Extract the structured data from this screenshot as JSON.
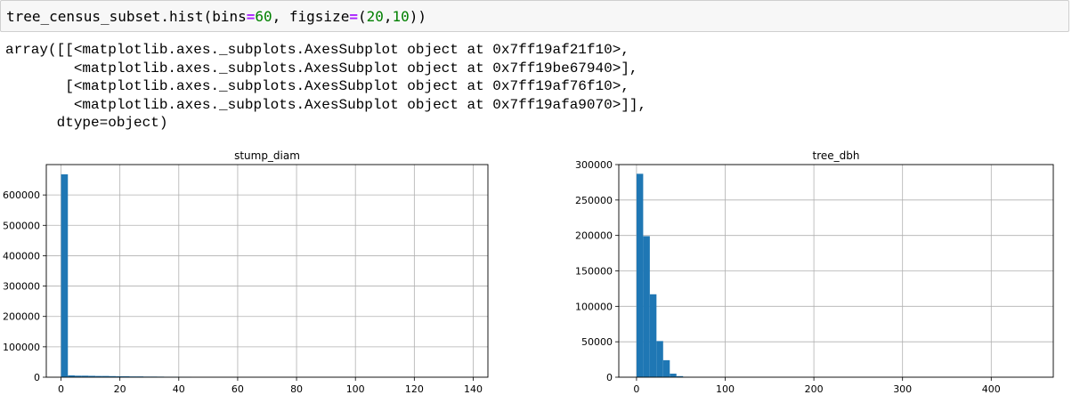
{
  "cell": {
    "code_prefix": "tree_census_subset.hist(bins",
    "eq1": "=",
    "bins": "60",
    "mid": ", figsize",
    "eq2": "=",
    "paren_open": "(",
    "fig_w": "20",
    "comma": ",",
    "fig_h": "10",
    "paren_close": "))"
  },
  "output": {
    "lines": [
      "array([[<matplotlib.axes._subplots.AxesSubplot object at 0x7ff19af21f10>,",
      "        <matplotlib.axes._subplots.AxesSubplot object at 0x7ff19be67940>],",
      "       [<matplotlib.axes._subplots.AxesSubplot object at 0x7ff19af76f10>,",
      "        <matplotlib.axes._subplots.AxesSubplot object at 0x7ff19afa9070>]],",
      "      dtype=object)"
    ]
  },
  "colors": {
    "bar": "#1f77b4",
    "grid": "#b0b0b0",
    "axis": "#000000"
  },
  "chart_data": [
    {
      "type": "bar",
      "title": "stump_diam",
      "xlim": [
        -5,
        145
      ],
      "ylim": [
        0,
        700000
      ],
      "xticks": [
        0,
        20,
        40,
        60,
        80,
        100,
        120,
        140
      ],
      "yticks": [
        0,
        100000,
        200000,
        300000,
        400000,
        500000,
        600000
      ],
      "grid": true,
      "bin_edges": [
        0,
        2.33,
        4.67,
        7,
        9.33,
        11.67,
        14,
        16.33,
        18.67,
        21,
        23.33,
        25.67,
        28,
        30.33,
        32.67,
        35,
        37.33,
        39.67,
        42,
        44.33
      ],
      "values": [
        668000,
        6000,
        5000,
        5000,
        4500,
        4000,
        4000,
        3500,
        3000,
        3000,
        2500,
        2500,
        2000,
        2000,
        1800,
        1500,
        1500,
        1200,
        1000
      ]
    },
    {
      "type": "bar",
      "title": "tree_dbh",
      "xlim": [
        -20,
        470
      ],
      "ylim": [
        0,
        300000
      ],
      "xticks": [
        0,
        100,
        200,
        300,
        400
      ],
      "yticks": [
        0,
        50000,
        100000,
        150000,
        200000,
        250000,
        300000
      ],
      "grid": true,
      "bin_edges": [
        0,
        7.5,
        15,
        22.5,
        30,
        37.5,
        45,
        52.5,
        60
      ],
      "values": [
        287000,
        199000,
        117000,
        51000,
        24000,
        5000,
        1500,
        500
      ]
    }
  ]
}
